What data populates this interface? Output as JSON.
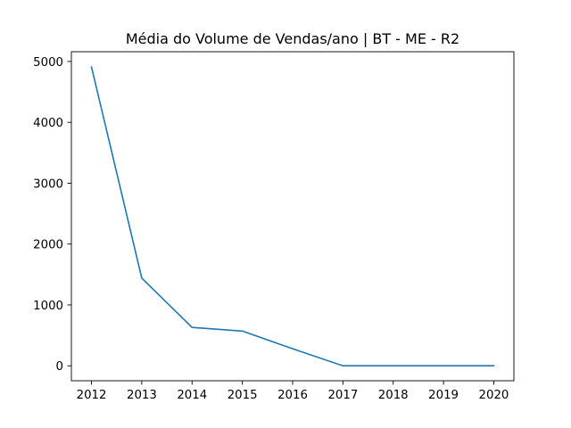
{
  "chart_data": {
    "type": "line",
    "title": "Média do Volume de Vendas/ano | BT - ME - R2",
    "xlabel": "",
    "ylabel": "",
    "x": [
      2012,
      2013,
      2014,
      2015,
      2016,
      2017,
      2018,
      2019,
      2020
    ],
    "x_tick_labels": [
      "2012",
      "2013",
      "2014",
      "2015",
      "2016",
      "2017",
      "2018",
      "2019",
      "2020"
    ],
    "y_ticks": [
      0,
      1000,
      2000,
      3000,
      4000,
      5000
    ],
    "y_tick_labels": [
      "0",
      "1000",
      "2000",
      "3000",
      "4000",
      "5000"
    ],
    "xlim": [
      2011.6,
      2020.4
    ],
    "ylim": [
      -246,
      5160
    ],
    "grid": false,
    "series": [
      {
        "color": "#1f77b4",
        "values": [
          4910,
          1440,
          630,
          570,
          280,
          0,
          0,
          0,
          0
        ]
      }
    ]
  }
}
